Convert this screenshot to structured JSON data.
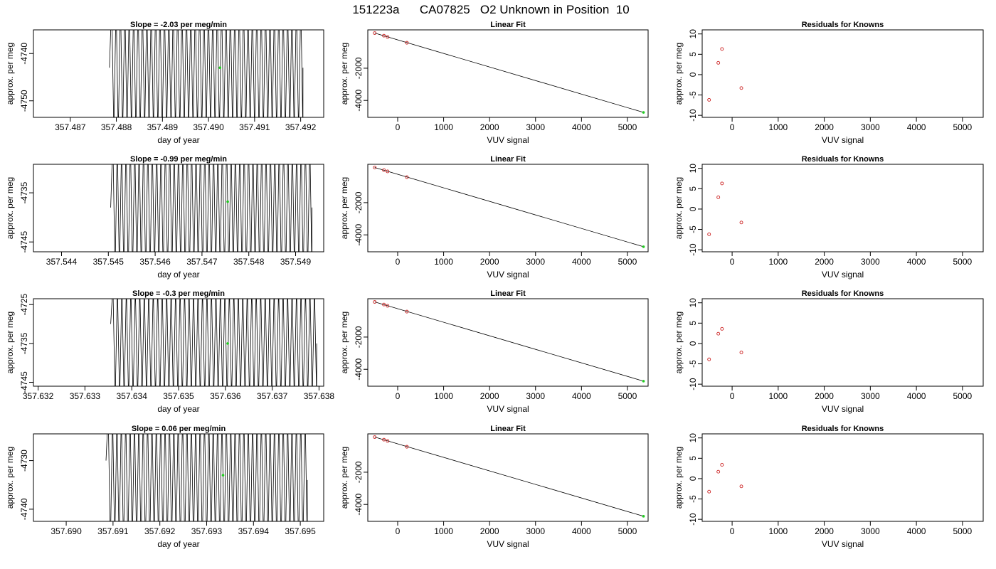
{
  "figure_title": "151223a      CA07825   O2 Unknown in Position  10",
  "chart_data": [
    {
      "type": "line",
      "title": "Slope =  -2.03  per meg/min",
      "xlabel": "day of year",
      "ylabel": "approx. per meg",
      "xlim": [
        357.4862,
        357.4925
      ],
      "ylim": [
        -4753.5,
        -4735.0
      ],
      "xticks": [
        357.487,
        357.488,
        357.489,
        357.49,
        357.491,
        357.492
      ],
      "xtick_labels": [
        "357.487",
        "357.488",
        "357.489",
        "357.490",
        "357.491",
        "357.492"
      ],
      "yticks": [
        -4740,
        -4750
      ],
      "ytick_labels": [
        "-4740",
        "-4750"
      ],
      "signal": {
        "x_start": 357.48785,
        "x_end": 357.49205,
        "y_center": -4743,
        "amplitude": 14,
        "cycles": 44,
        "start_level": -4743
      },
      "highlight_point": {
        "x": 357.49025,
        "y": -4743
      }
    },
    {
      "type": "scatter",
      "title": "Linear Fit",
      "xlabel": "VUV signal",
      "ylabel": "approx. per meg",
      "xlim": [
        -650,
        5450
      ],
      "ylim": [
        -5050,
        380
      ],
      "xticks": [
        0,
        1000,
        2000,
        3000,
        4000,
        5000
      ],
      "xtick_labels": [
        "0",
        "1000",
        "2000",
        "3000",
        "4000",
        "5000"
      ],
      "yticks": [
        -2000,
        -4000
      ],
      "ytick_labels": [
        "-2000",
        "-4000"
      ],
      "fit_line": {
        "x": [
          -500,
          5350
        ],
        "y": [
          180,
          -4743
        ]
      },
      "known_points": {
        "x": [
          -500,
          -300,
          -220,
          200
        ],
        "y": [
          180,
          20,
          -60,
          -420
        ]
      },
      "unknown_point": {
        "x": 5350,
        "y": -4743
      }
    },
    {
      "type": "scatter",
      "title": "Residuals for Knowns",
      "xlabel": "VUV signal",
      "ylabel": "approx. per meg",
      "xlim": [
        -650,
        5450
      ],
      "ylim": [
        -10.5,
        11
      ],
      "xticks": [
        0,
        1000,
        2000,
        3000,
        4000,
        5000
      ],
      "xtick_labels": [
        "0",
        "1000",
        "2000",
        "3000",
        "4000",
        "5000"
      ],
      "yticks": [
        10,
        5,
        0,
        -5,
        -10
      ],
      "ytick_labels": [
        "10",
        "5",
        "0",
        "-5",
        "-10"
      ],
      "points": {
        "x": [
          -500,
          -300,
          -220,
          200
        ],
        "y": [
          -6.2,
          2.9,
          6.3,
          -3.3
        ]
      }
    },
    {
      "type": "line",
      "title": "Slope =  -0.99  per meg/min",
      "xlabel": "day of year",
      "ylabel": "approx. per meg",
      "xlim": [
        357.5434,
        357.5496
      ],
      "ylim": [
        -4747.0,
        -4729.2
      ],
      "xticks": [
        357.544,
        357.545,
        357.546,
        357.547,
        357.548,
        357.549
      ],
      "xtick_labels": [
        "357.544",
        "357.545",
        "357.546",
        "357.547",
        "357.548",
        "357.549"
      ],
      "yticks": [
        -4735,
        -4745
      ],
      "ytick_labels": [
        "-4735",
        "-4745"
      ],
      "signal": {
        "x_start": 357.54505,
        "x_end": 357.54935,
        "y_center": -4738,
        "amplitude": 14,
        "cycles": 46,
        "start_level": -4738
      },
      "highlight_point": {
        "x": 357.54755,
        "y": -4736.8
      }
    },
    {
      "type": "scatter",
      "title": "Linear Fit",
      "xlabel": "VUV signal",
      "ylabel": "approx. per meg",
      "xlim": [
        -650,
        5450
      ],
      "ylim": [
        -5050,
        380
      ],
      "xticks": [
        0,
        1000,
        2000,
        3000,
        4000,
        5000
      ],
      "xtick_labels": [
        "0",
        "1000",
        "2000",
        "3000",
        "4000",
        "5000"
      ],
      "yticks": [
        -2000,
        -4000
      ],
      "ytick_labels": [
        "-2000",
        "-4000"
      ],
      "fit_line": {
        "x": [
          -500,
          5350
        ],
        "y": [
          180,
          -4737
        ]
      },
      "known_points": {
        "x": [
          -500,
          -300,
          -220,
          200
        ],
        "y": [
          180,
          20,
          -60,
          -420
        ]
      },
      "unknown_point": {
        "x": 5350,
        "y": -4737
      }
    },
    {
      "type": "scatter",
      "title": "Residuals for Knowns",
      "xlabel": "VUV signal",
      "ylabel": "approx. per meg",
      "xlim": [
        -650,
        5450
      ],
      "ylim": [
        -10.5,
        11
      ],
      "xticks": [
        0,
        1000,
        2000,
        3000,
        4000,
        5000
      ],
      "xtick_labels": [
        "0",
        "1000",
        "2000",
        "3000",
        "4000",
        "5000"
      ],
      "yticks": [
        10,
        5,
        0,
        -5,
        -10
      ],
      "ytick_labels": [
        "10",
        "5",
        "0",
        "-5",
        "-10"
      ],
      "points": {
        "x": [
          -500,
          -300,
          -220,
          200
        ],
        "y": [
          -6.2,
          2.9,
          6.3,
          -3.3
        ]
      }
    },
    {
      "type": "line",
      "title": "Slope =  -0.3  per meg/min",
      "xlabel": "day of year",
      "ylabel": "approx. per meg",
      "xlim": [
        357.6319,
        357.6381
      ],
      "ylim": [
        -4746.0,
        -4723.5
      ],
      "xticks": [
        357.632,
        357.633,
        357.634,
        357.635,
        357.636,
        357.637,
        357.638
      ],
      "xtick_labels": [
        "357.632",
        "357.633",
        "357.634",
        "357.635",
        "357.636",
        "357.637",
        "357.638"
      ],
      "yticks": [
        -4725,
        -4735,
        -4745
      ],
      "ytick_labels": [
        "-4725",
        "-4735",
        "-4745"
      ],
      "signal": {
        "x_start": 357.63355,
        "x_end": 357.63795,
        "y_center": -4735,
        "amplitude": 15,
        "cycles": 46,
        "start_level": -4730
      },
      "highlight_point": {
        "x": 357.63605,
        "y": -4735
      }
    },
    {
      "type": "scatter",
      "title": "Linear Fit",
      "xlabel": "VUV signal",
      "ylabel": "approx. per meg",
      "xlim": [
        -650,
        5450
      ],
      "ylim": [
        -5050,
        380
      ],
      "xticks": [
        0,
        1000,
        2000,
        3000,
        4000,
        5000
      ],
      "xtick_labels": [
        "0",
        "1000",
        "2000",
        "3000",
        "4000",
        "5000"
      ],
      "yticks": [
        -2000,
        -4000
      ],
      "ytick_labels": [
        "-2000",
        "-4000"
      ],
      "fit_line": {
        "x": [
          -500,
          5350
        ],
        "y": [
          180,
          -4735
        ]
      },
      "known_points": {
        "x": [
          -500,
          -300,
          -220,
          200
        ],
        "y": [
          180,
          20,
          -60,
          -420
        ]
      },
      "unknown_point": {
        "x": 5350,
        "y": -4735
      }
    },
    {
      "type": "scatter",
      "title": "Residuals for Knowns",
      "xlabel": "VUV signal",
      "ylabel": "approx. per meg",
      "xlim": [
        -650,
        5450
      ],
      "ylim": [
        -10.5,
        11
      ],
      "xticks": [
        0,
        1000,
        2000,
        3000,
        4000,
        5000
      ],
      "xtick_labels": [
        "0",
        "1000",
        "2000",
        "3000",
        "4000",
        "5000"
      ],
      "yticks": [
        10,
        5,
        0,
        -5,
        -10
      ],
      "ytick_labels": [
        "10",
        "5",
        "0",
        "-5",
        "-10"
      ],
      "points": {
        "x": [
          -500,
          -300,
          -220,
          200
        ],
        "y": [
          -3.9,
          2.4,
          3.6,
          -2.2
        ]
      }
    },
    {
      "type": "line",
      "title": "Slope =  0.06  per meg/min",
      "xlabel": "day of year",
      "ylabel": "approx. per meg",
      "xlim": [
        357.6893,
        357.6955
      ],
      "ylim": [
        -4742.5,
        -4724.5
      ],
      "xticks": [
        357.69,
        357.691,
        357.692,
        357.693,
        357.694,
        357.695
      ],
      "xtick_labels": [
        "357.690",
        "357.691",
        "357.692",
        "357.693",
        "357.694",
        "357.695"
      ],
      "yticks": [
        -4730,
        -4740
      ],
      "ytick_labels": [
        "-4730",
        "-4740"
      ],
      "signal": {
        "x_start": 357.69085,
        "x_end": 357.69515,
        "y_center": -4734,
        "amplitude": 14,
        "cycles": 46,
        "start_level": -4730
      },
      "highlight_point": {
        "x": 357.69335,
        "y": -4733
      }
    },
    {
      "type": "scatter",
      "title": "Linear Fit",
      "xlabel": "VUV signal",
      "ylabel": "approx. per meg",
      "xlim": [
        -650,
        5450
      ],
      "ylim": [
        -5050,
        380
      ],
      "xticks": [
        0,
        1000,
        2000,
        3000,
        4000,
        5000
      ],
      "xtick_labels": [
        "0",
        "1000",
        "2000",
        "3000",
        "4000",
        "5000"
      ],
      "yticks": [
        -2000,
        -4000
      ],
      "ytick_labels": [
        "-2000",
        "-4000"
      ],
      "fit_line": {
        "x": [
          -500,
          5350
        ],
        "y": [
          180,
          -4733
        ]
      },
      "known_points": {
        "x": [
          -500,
          -300,
          -220,
          200
        ],
        "y": [
          180,
          20,
          -60,
          -420
        ]
      },
      "unknown_point": {
        "x": 5350,
        "y": -4733
      }
    },
    {
      "type": "scatter",
      "title": "Residuals for Knowns",
      "xlabel": "VUV signal",
      "ylabel": "approx. per meg",
      "xlim": [
        -650,
        5450
      ],
      "ylim": [
        -10.5,
        11
      ],
      "xticks": [
        0,
        1000,
        2000,
        3000,
        4000,
        5000
      ],
      "xtick_labels": [
        "0",
        "1000",
        "2000",
        "3000",
        "4000",
        "5000"
      ],
      "yticks": [
        10,
        5,
        0,
        -5,
        -10
      ],
      "ytick_labels": [
        "10",
        "5",
        "0",
        "-5",
        "-10"
      ],
      "points": {
        "x": [
          -500,
          -300,
          -220,
          200
        ],
        "y": [
          -3.2,
          1.7,
          3.4,
          -1.9
        ]
      }
    }
  ]
}
